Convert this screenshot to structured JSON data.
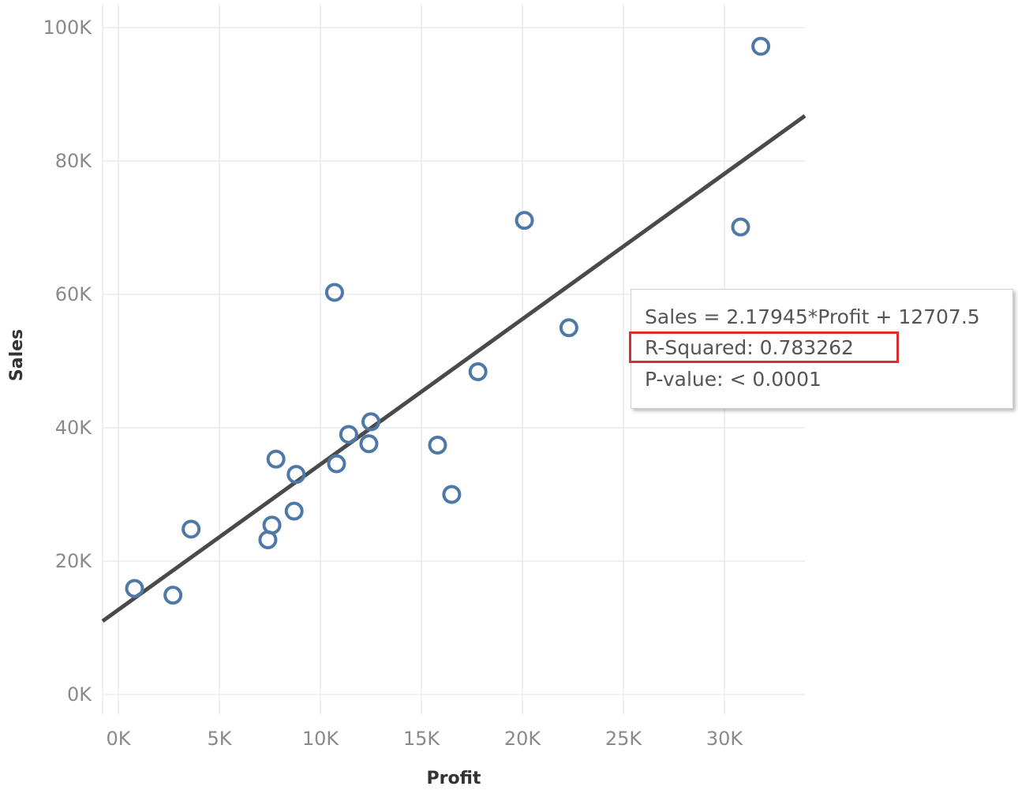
{
  "chart_data": {
    "type": "scatter",
    "title": "",
    "xlabel": "Profit",
    "ylabel": "Sales",
    "xlim": [
      -500,
      34000
    ],
    "ylim": [
      -1500,
      103000
    ],
    "x_ticks": [
      {
        "value": 0,
        "label": "0K"
      },
      {
        "value": 5000,
        "label": "5K"
      },
      {
        "value": 10000,
        "label": "10K"
      },
      {
        "value": 15000,
        "label": "15K"
      },
      {
        "value": 20000,
        "label": "20K"
      },
      {
        "value": 25000,
        "label": "25K"
      },
      {
        "value": 30000,
        "label": "30K"
      }
    ],
    "y_ticks": [
      {
        "value": 0,
        "label": "0K"
      },
      {
        "value": 20000,
        "label": "20K"
      },
      {
        "value": 40000,
        "label": "40K"
      },
      {
        "value": 60000,
        "label": "60K"
      },
      {
        "value": 80000,
        "label": "80K"
      },
      {
        "value": 100000,
        "label": "100K"
      }
    ],
    "grid": true,
    "points": [
      {
        "x": 800,
        "y": 15900
      },
      {
        "x": 2700,
        "y": 14900
      },
      {
        "x": 3600,
        "y": 24800
      },
      {
        "x": 7400,
        "y": 23200
      },
      {
        "x": 7600,
        "y": 25400
      },
      {
        "x": 7800,
        "y": 35300
      },
      {
        "x": 8700,
        "y": 27500
      },
      {
        "x": 8800,
        "y": 33000
      },
      {
        "x": 10700,
        "y": 60300
      },
      {
        "x": 10800,
        "y": 34600
      },
      {
        "x": 11400,
        "y": 39000
      },
      {
        "x": 12400,
        "y": 37600
      },
      {
        "x": 12500,
        "y": 40900
      },
      {
        "x": 15800,
        "y": 37400
      },
      {
        "x": 16500,
        "y": 30000
      },
      {
        "x": 17800,
        "y": 48400
      },
      {
        "x": 20100,
        "y": 71100
      },
      {
        "x": 22300,
        "y": 55000
      },
      {
        "x": 30800,
        "y": 70100
      },
      {
        "x": 31800,
        "y": 97200
      }
    ],
    "trend_line": {
      "slope": 2.17945,
      "intercept": 12707.5
    },
    "annotations": [
      "Sales = 2.17945*Profit + 12707.5",
      "R-Squared: 0.783262",
      "P-value: < 0.0001"
    ],
    "highlighted_annotation_index": 1,
    "colors": {
      "point": "#4e79a7",
      "trend_line": "#4a4a4a",
      "highlight": "#d9302f",
      "grid": "#ececec"
    }
  }
}
